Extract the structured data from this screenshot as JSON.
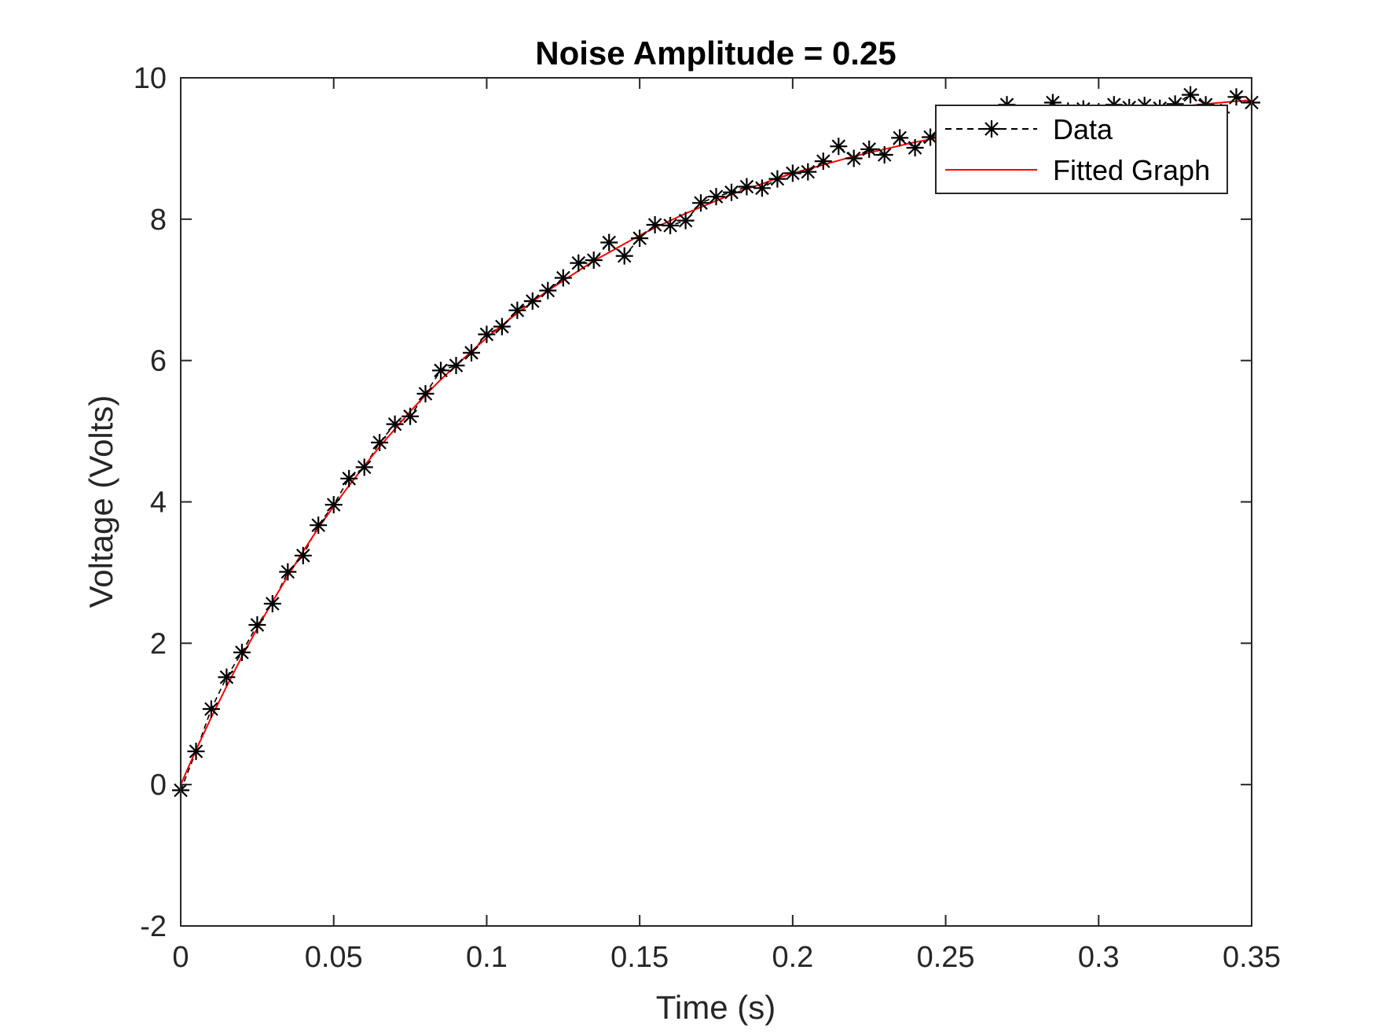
{
  "chart_data": {
    "type": "line",
    "title": "Noise Amplitude = 0.25",
    "xlabel": "Time (s)",
    "ylabel": "Voltage (Volts)",
    "xlim": [
      0,
      0.35
    ],
    "ylim": [
      -2,
      10
    ],
    "x_ticks": [
      0,
      0.05,
      0.1,
      0.15,
      0.2,
      0.25,
      0.3,
      0.35
    ],
    "x_tick_labels": [
      "0",
      "0.05",
      "0.1",
      "0.15",
      "0.2",
      "0.25",
      "0.3",
      "0.35"
    ],
    "y_ticks": [
      -2,
      0,
      2,
      4,
      6,
      8,
      10
    ],
    "y_tick_labels": [
      "-2",
      "0",
      "2",
      "4",
      "6",
      "8",
      "10"
    ],
    "grid": false,
    "legend_position": "top-right",
    "series": [
      {
        "name": "Data",
        "style": "black dashed line with asterisk markers",
        "color": "#000000",
        "x": [
          0,
          0.005,
          0.01,
          0.015,
          0.02,
          0.025,
          0.03,
          0.035,
          0.04,
          0.045,
          0.05,
          0.055,
          0.06,
          0.065,
          0.07,
          0.075,
          0.08,
          0.085,
          0.09,
          0.095,
          0.1,
          0.105,
          0.11,
          0.115,
          0.12,
          0.125,
          0.13,
          0.135,
          0.14,
          0.145,
          0.15,
          0.155,
          0.16,
          0.165,
          0.17,
          0.175,
          0.18,
          0.185,
          0.19,
          0.195,
          0.2,
          0.205,
          0.21,
          0.215,
          0.22,
          0.225,
          0.23,
          0.235,
          0.24,
          0.245,
          0.25,
          0.255,
          0.26,
          0.265,
          0.27,
          0.275,
          0.28,
          0.285,
          0.29,
          0.295,
          0.3,
          0.305,
          0.31,
          0.315,
          0.32,
          0.325,
          0.33,
          0.335,
          0.34,
          0.345,
          0.35
        ],
        "y": [
          -0.08,
          0.47,
          1.07,
          1.52,
          1.87,
          2.26,
          2.56,
          3.01,
          3.24,
          3.67,
          3.96,
          4.33,
          4.49,
          4.84,
          5.1,
          5.21,
          5.53,
          5.86,
          5.93,
          6.11,
          6.37,
          6.48,
          6.71,
          6.84,
          6.99,
          7.17,
          7.38,
          7.42,
          7.67,
          7.48,
          7.73,
          7.92,
          7.91,
          7.98,
          8.23,
          8.32,
          8.38,
          8.46,
          8.44,
          8.57,
          8.65,
          8.67,
          8.82,
          9.03,
          8.86,
          8.99,
          8.91,
          9.15,
          9.01,
          9.16,
          9.27,
          9.3,
          9.36,
          9.42,
          9.62,
          9.47,
          9.5,
          9.65,
          9.53,
          9.56,
          9.52,
          9.62,
          9.58,
          9.61,
          9.57,
          9.63,
          9.76,
          9.62,
          9.51,
          9.73,
          9.65
        ]
      },
      {
        "name": "Fitted Graph",
        "style": "red solid line",
        "color": "#ff0000",
        "x": [
          0,
          0.005,
          0.01,
          0.015,
          0.02,
          0.025,
          0.03,
          0.035,
          0.04,
          0.045,
          0.05,
          0.055,
          0.06,
          0.065,
          0.07,
          0.075,
          0.08,
          0.085,
          0.09,
          0.095,
          0.1,
          0.105,
          0.11,
          0.115,
          0.12,
          0.125,
          0.13,
          0.135,
          0.14,
          0.145,
          0.15,
          0.155,
          0.16,
          0.165,
          0.17,
          0.175,
          0.18,
          0.185,
          0.19,
          0.195,
          0.2,
          0.205,
          0.21,
          0.215,
          0.22,
          0.225,
          0.23,
          0.235,
          0.24,
          0.245,
          0.25,
          0.255,
          0.26,
          0.265,
          0.27,
          0.275,
          0.28,
          0.285,
          0.29,
          0.295,
          0.3,
          0.305,
          0.31,
          0.315,
          0.32,
          0.325,
          0.33,
          0.335,
          0.34,
          0.345,
          0.35
        ],
        "y": [
          0,
          0.49,
          0.95,
          1.39,
          1.81,
          2.21,
          2.59,
          2.95,
          3.3,
          3.63,
          3.94,
          4.23,
          4.51,
          4.78,
          5.03,
          5.28,
          5.51,
          5.73,
          5.93,
          6.13,
          6.32,
          6.5,
          6.67,
          6.83,
          6.99,
          7.13,
          7.27,
          7.41,
          7.53,
          7.65,
          7.77,
          7.88,
          7.98,
          8.08,
          8.17,
          8.26,
          8.35,
          8.43,
          8.5,
          8.58,
          8.65,
          8.71,
          8.77,
          8.83,
          8.89,
          8.94,
          8.99,
          9.04,
          9.09,
          9.13,
          9.17,
          9.21,
          9.25,
          9.28,
          9.32,
          9.35,
          9.38,
          9.41,
          9.44,
          9.46,
          9.49,
          9.51,
          9.53,
          9.56,
          9.58,
          9.6,
          9.61,
          9.63,
          9.65,
          9.67,
          9.68
        ]
      }
    ]
  }
}
